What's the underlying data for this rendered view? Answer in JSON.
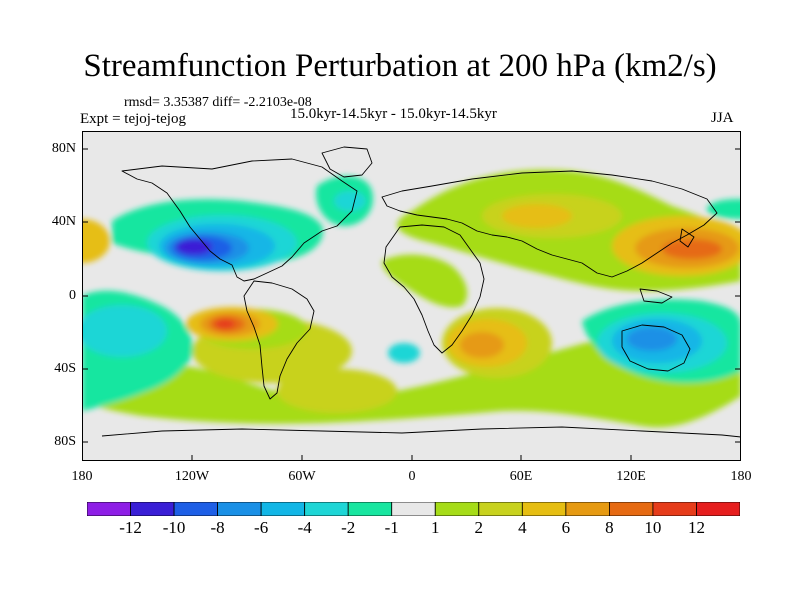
{
  "title": "Streamfunction Perturbation at 200 hPa (km2/s)",
  "stats_text": "rmsd= 3.35387 diff= -2.2103e-08",
  "experiment_text": "Expt = tejoj-tejog",
  "period_text": "15.0kyr-14.5kyr - 15.0kyr-14.5kyr",
  "season_text": "JJA",
  "map": {
    "projection": "cylindrical equidistant",
    "lat_labels": [
      "80N",
      "40N",
      "0",
      "40S",
      "80S"
    ],
    "lon_labels": [
      "180",
      "120W",
      "60W",
      "0",
      "60E",
      "120E",
      "180"
    ]
  },
  "colorbar": {
    "labels": [
      "-12",
      "-10",
      "-8",
      "-6",
      "-4",
      "-2",
      "-1",
      "1",
      "2",
      "4",
      "6",
      "8",
      "10",
      "12"
    ],
    "colors": [
      "#8e1ee6",
      "#3a1fd6",
      "#1e5fe6",
      "#1a90e6",
      "#12b6e6",
      "#1ed6d6",
      "#18e6a0",
      "#e8e8e8",
      "#a6dc18",
      "#c8d21e",
      "#e6be12",
      "#e69a12",
      "#e66a12",
      "#e63c1a",
      "#e61e1e"
    ]
  }
}
